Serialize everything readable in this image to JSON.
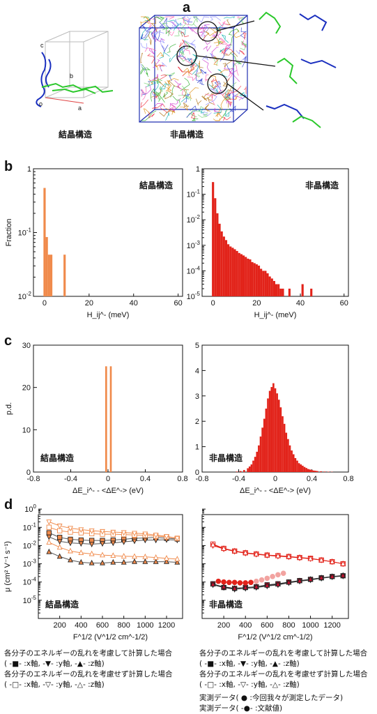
{
  "panel_labels": {
    "a": "a",
    "b": "b",
    "c": "c",
    "d": "d"
  },
  "section_a": {
    "left_caption": "結晶構造",
    "right_caption": "非晶構造",
    "axis_letters": {
      "a": "a",
      "b": "b",
      "c": "c",
      "o": "o"
    }
  },
  "colors": {
    "orange": "#f08a4b",
    "red": "#e2231a",
    "salmon": "#f2a3a0",
    "dark_red": "#c8102e"
  },
  "chart_data": [
    {
      "id": "b-crystal",
      "type": "bar",
      "ylabel": "Fraction",
      "log_y": true,
      "ylim": [
        0.01,
        1
      ],
      "xlim": [
        -5,
        62
      ],
      "xticks": [
        0,
        20,
        40,
        60
      ],
      "ytick_labels": [
        "1",
        "10^-1",
        "10^-2"
      ],
      "xlabel": "H_ij^- (meV)",
      "annotation": "結晶構造",
      "bin_width": 1,
      "x": [
        0,
        1,
        2,
        3,
        9
      ],
      "values": [
        0.5,
        0.085,
        0.045,
        0.045,
        0.045
      ]
    },
    {
      "id": "b-amorphous",
      "type": "bar",
      "log_y": true,
      "ylim": [
        1e-05,
        1
      ],
      "xlim": [
        -5,
        62
      ],
      "xticks": [
        0,
        20,
        40,
        60
      ],
      "ytick_labels": [
        "1",
        "10^-1",
        "10^-2",
        "10^-3",
        "10^-4",
        "10^-5"
      ],
      "xlabel": "H_ij^- (meV)",
      "annotation": "非晶構造",
      "bin_width": 1,
      "x": [
        0,
        1,
        2,
        3,
        4,
        5,
        6,
        7,
        8,
        9,
        10,
        11,
        12,
        13,
        14,
        15,
        16,
        17,
        18,
        19,
        20,
        21,
        22,
        23,
        24,
        25,
        26,
        27,
        28,
        29,
        30,
        31,
        32,
        33,
        34,
        35,
        36,
        37,
        38,
        40,
        41,
        42,
        44,
        45,
        47,
        48,
        50,
        52,
        55,
        57,
        58
      ],
      "values": [
        0.3,
        0.07,
        0.018,
        0.007,
        0.0035,
        0.0022,
        0.0016,
        0.0011,
        0.0009,
        0.0008,
        0.0007,
        0.0006,
        0.0005,
        0.00045,
        0.0004,
        0.00035,
        0.0003,
        0.00028,
        0.00022,
        0.0002,
        0.00018,
        0.00016,
        0.00012,
        0.0001,
        0.0001,
        8e-05,
        6e-05,
        5e-05,
        4e-05,
        3e-05,
        3e-05,
        2e-05,
        2e-05,
        1e-05,
        1e-05,
        2e-05,
        1e-05,
        1e-05,
        1e-05,
        1e-05,
        3e-05,
        1e-05,
        1e-05,
        2e-05,
        1e-05,
        1e-05,
        1e-05,
        1e-05,
        1e-05,
        1e-05,
        1e-05
      ]
    },
    {
      "id": "c-crystal",
      "type": "bar",
      "ylabel": "p.d.",
      "ylim": [
        0,
        30
      ],
      "yticks": [
        0,
        10,
        20,
        30
      ],
      "xlim": [
        -0.8,
        0.8
      ],
      "xticks": [
        -0.8,
        -0.4,
        0,
        0.4,
        0.8
      ],
      "xlabel": "ΔE_i^- - <ΔE^-> (eV)",
      "annotation": "結晶構造",
      "bin_width": 0.02,
      "x": [
        -0.02,
        0.03
      ],
      "values": [
        25,
        25
      ]
    },
    {
      "id": "c-amorphous",
      "type": "bar",
      "ylim": [
        0,
        5
      ],
      "yticks": [
        0,
        1,
        2,
        3,
        4,
        5
      ],
      "xlim": [
        -0.8,
        0.8
      ],
      "xticks": [
        -0.8,
        -0.4,
        0,
        0.4,
        0.8
      ],
      "xlabel": "ΔE_i^- - <ΔE^-> (eV)",
      "annotation": "非晶構造",
      "bin_width": 0.02,
      "x": [
        -0.42,
        -0.38,
        -0.34,
        -0.3,
        -0.28,
        -0.26,
        -0.24,
        -0.22,
        -0.2,
        -0.18,
        -0.16,
        -0.14,
        -0.12,
        -0.1,
        -0.08,
        -0.06,
        -0.04,
        -0.02,
        0,
        0.02,
        0.04,
        0.06,
        0.08,
        0.1,
        0.12,
        0.14,
        0.16,
        0.18,
        0.2,
        0.22,
        0.24,
        0.26,
        0.28,
        0.3,
        0.32,
        0.34,
        0.36,
        0.38,
        0.4,
        0.42,
        0.44,
        0.46,
        0.5,
        0.54,
        0.58,
        0.62
      ],
      "values": [
        0.02,
        0.04,
        0.08,
        0.15,
        0.22,
        0.3,
        0.45,
        0.6,
        0.8,
        1.05,
        1.4,
        1.75,
        2.1,
        2.5,
        2.9,
        3.2,
        3.35,
        3.5,
        3.3,
        3.1,
        2.85,
        2.55,
        2.2,
        1.9,
        1.55,
        1.3,
        1.05,
        0.85,
        0.7,
        0.55,
        0.45,
        0.35,
        0.3,
        0.25,
        0.2,
        0.16,
        0.12,
        0.1,
        0.08,
        0.06,
        0.05,
        0.04,
        0.03,
        0.02,
        0.015,
        0.01
      ]
    },
    {
      "id": "d-crystal",
      "type": "line",
      "log_y": true,
      "ylabel": "μ (cm² V⁻¹ s⁻¹)",
      "xlabel": "F^1/2 (V^1/2 cm^-1/2)",
      "xlim": [
        0,
        1350
      ],
      "ylim": [
        1e-05,
        5
      ],
      "xticks": [
        200,
        400,
        600,
        800,
        1000,
        1200
      ],
      "ytick_labels": [
        "10^0",
        "10^-1",
        "10^-2",
        "10^-3",
        "10^-4",
        "10^-5"
      ],
      "annotation": "結晶構造",
      "x": [
        100,
        200,
        300,
        400,
        500,
        600,
        700,
        800,
        900,
        1000,
        1100,
        1200,
        1300
      ],
      "series": [
        {
          "group": "disorder",
          "axis": "x",
          "marker": "square",
          "values": [
            0.5,
            0.28,
            0.22,
            0.2,
            0.19,
            0.19,
            0.2,
            0.22,
            0.25,
            0.26,
            0.28,
            0.25,
            0.23
          ]
        },
        {
          "group": "disorder",
          "axis": "y",
          "marker": "triangle-down",
          "values": [
            0.3,
            0.17,
            0.14,
            0.13,
            0.12,
            0.13,
            0.14,
            0.16,
            0.18,
            0.2,
            0.2,
            0.21,
            0.2
          ]
        },
        {
          "group": "disorder",
          "axis": "z",
          "marker": "triangle-up",
          "values": [
            0.045,
            0.025,
            0.016,
            0.012,
            0.011,
            0.011,
            0.012,
            0.012,
            0.013,
            0.013,
            0.013,
            0.013,
            0.012
          ]
        },
        {
          "group": "no-disorder",
          "axis": "x",
          "marker": "square",
          "values": [
            1.0,
            0.65,
            0.55,
            0.5,
            0.45,
            0.42,
            0.42,
            0.4,
            0.38,
            0.36,
            0.33,
            0.3,
            0.25
          ]
        },
        {
          "group": "no-disorder",
          "axis": "y",
          "marker": "triangle-down",
          "values": [
            2.0,
            1.2,
            0.9,
            0.75,
            0.65,
            0.6,
            0.55,
            0.52,
            0.48,
            0.44,
            0.38,
            0.32,
            0.25
          ]
        },
        {
          "group": "no-disorder",
          "axis": "z",
          "marker": "triangle-up",
          "values": [
            0.15,
            0.08,
            0.05,
            0.04,
            0.035,
            0.03,
            0.028,
            0.026,
            0.025,
            0.024,
            0.022,
            0.02,
            0.018
          ]
        }
      ]
    },
    {
      "id": "d-amorphous",
      "type": "line",
      "log_y": true,
      "xlabel": "F^1/2 (V^1/2 cm^-1/2)",
      "xlim": [
        0,
        1350
      ],
      "ylim": [
        1e-05,
        5
      ],
      "xticks": [
        200,
        400,
        600,
        800,
        1000,
        1200
      ],
      "annotation": "非晶構造",
      "x": [
        100,
        200,
        300,
        400,
        500,
        600,
        700,
        800,
        900,
        1000,
        1100,
        1200,
        1300
      ],
      "series": [
        {
          "group": "disorder",
          "axis": "x",
          "marker": "square",
          "values": [
            0.0008,
            0.0005,
            0.00045,
            0.0005,
            0.00055,
            0.0007,
            0.0008,
            0.001,
            0.0012,
            0.0014,
            0.0017,
            0.002,
            0.0022
          ]
        },
        {
          "group": "disorder",
          "axis": "y",
          "marker": "triangle-down",
          "values": [
            0.0007,
            0.0005,
            0.0004,
            0.00045,
            0.0005,
            0.0006,
            0.0007,
            0.0009,
            0.0011,
            0.0013,
            0.0016,
            0.0019,
            0.0021
          ]
        },
        {
          "group": "disorder",
          "axis": "z",
          "marker": "triangle-up",
          "values": [
            0.00075,
            0.00055,
            0.00045,
            0.0005,
            0.00055,
            0.00065,
            0.00075,
            0.00095,
            0.00115,
            0.0014,
            0.0017,
            0.002,
            0.0023
          ]
        },
        {
          "group": "no-disorder",
          "axis": "x",
          "marker": "square",
          "values": [
            0.12,
            0.07,
            0.05,
            0.04,
            0.035,
            0.03,
            0.028,
            0.025,
            0.022,
            0.02,
            0.016,
            0.013,
            0.01
          ]
        },
        {
          "group": "no-disorder",
          "axis": "y",
          "marker": "triangle-down",
          "values": [
            0.1,
            0.065,
            0.048,
            0.038,
            0.033,
            0.029,
            0.026,
            0.024,
            0.021,
            0.019,
            0.016,
            0.013,
            0.01
          ]
        },
        {
          "group": "no-disorder",
          "axis": "z",
          "marker": "triangle-up",
          "values": [
            0.11,
            0.068,
            0.05,
            0.04,
            0.034,
            0.03,
            0.027,
            0.025,
            0.022,
            0.019,
            0.016,
            0.013,
            0.01
          ]
        },
        {
          "group": "experiment-this-work",
          "marker": "circle",
          "x": [
            500,
            550,
            600,
            650,
            700,
            750
          ],
          "values": [
            0.0011,
            0.0013,
            0.0016,
            0.002,
            0.0025,
            0.003
          ]
        },
        {
          "group": "experiment-literature",
          "marker": "circle",
          "x": [
            150,
            200,
            250,
            300,
            350,
            400,
            450
          ],
          "values": [
            0.0011,
            0.001,
            0.00095,
            0.00095,
            0.0009,
            0.0009,
            0.00095
          ]
        }
      ]
    }
  ],
  "legend_left": {
    "line1": "各分子のエネルギーの乱れを考慮して計算した場合",
    "line2": "( -■- :x軸, -▼- :y軸, -▲- :z軸)",
    "line3": "各分子のエネルギーの乱れを考慮せず計算した場合",
    "line4": "( -□- :x軸, -▽- :y軸, -△- :z軸)"
  },
  "legend_right": {
    "line1": "各分子のエネルギーの乱れを考慮して計算した場合",
    "line2": "( -■- :x軸, -▼- :y軸, -▲- :z軸)",
    "line3": "各分子のエネルギーの乱れを考慮せず計算した場合",
    "line4": "( -□- :x軸, -▽- :y軸, -△- :z軸)",
    "line5": "実測データ( ● :今回我々が測定したデータ)",
    "line6": "実測データ( -●- :文献値)"
  }
}
